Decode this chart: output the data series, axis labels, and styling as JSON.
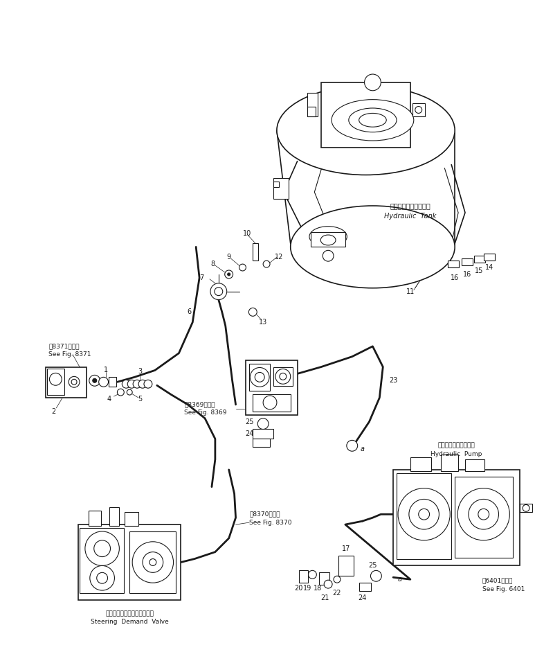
{
  "bg_color": "#ffffff",
  "lc": "#1a1a1a",
  "figsize": [
    7.86,
    9.67
  ],
  "dpi": 100,
  "xlim": [
    0,
    786
  ],
  "ylim": [
    0,
    967
  ],
  "labels": {
    "hydraulic_tank_jp": "ハイドロリックタンク",
    "hydraulic_tank_en": "Hydraulic  Tank",
    "hydraulic_pump_jp": "ハイドロリックポンプ",
    "hydraulic_pump_en": "Hydraulic  Pump",
    "steering_valve_jp": "ステアリングデマンドバルブ",
    "steering_valve_en": "Steering  Demand  Valve",
    "see_8371_jp": "第8371図参照",
    "see_8371_en": "See Fig. 8371",
    "see_8369_jp": "第8369図参照",
    "see_8369_en": "See Fig. 8369",
    "see_8370_jp": "第8370図参照",
    "see_8370_en": "See Fig. 8370",
    "see_6401_jp": "第6401図参照",
    "see_6401_en": "See Fig. 6401"
  }
}
